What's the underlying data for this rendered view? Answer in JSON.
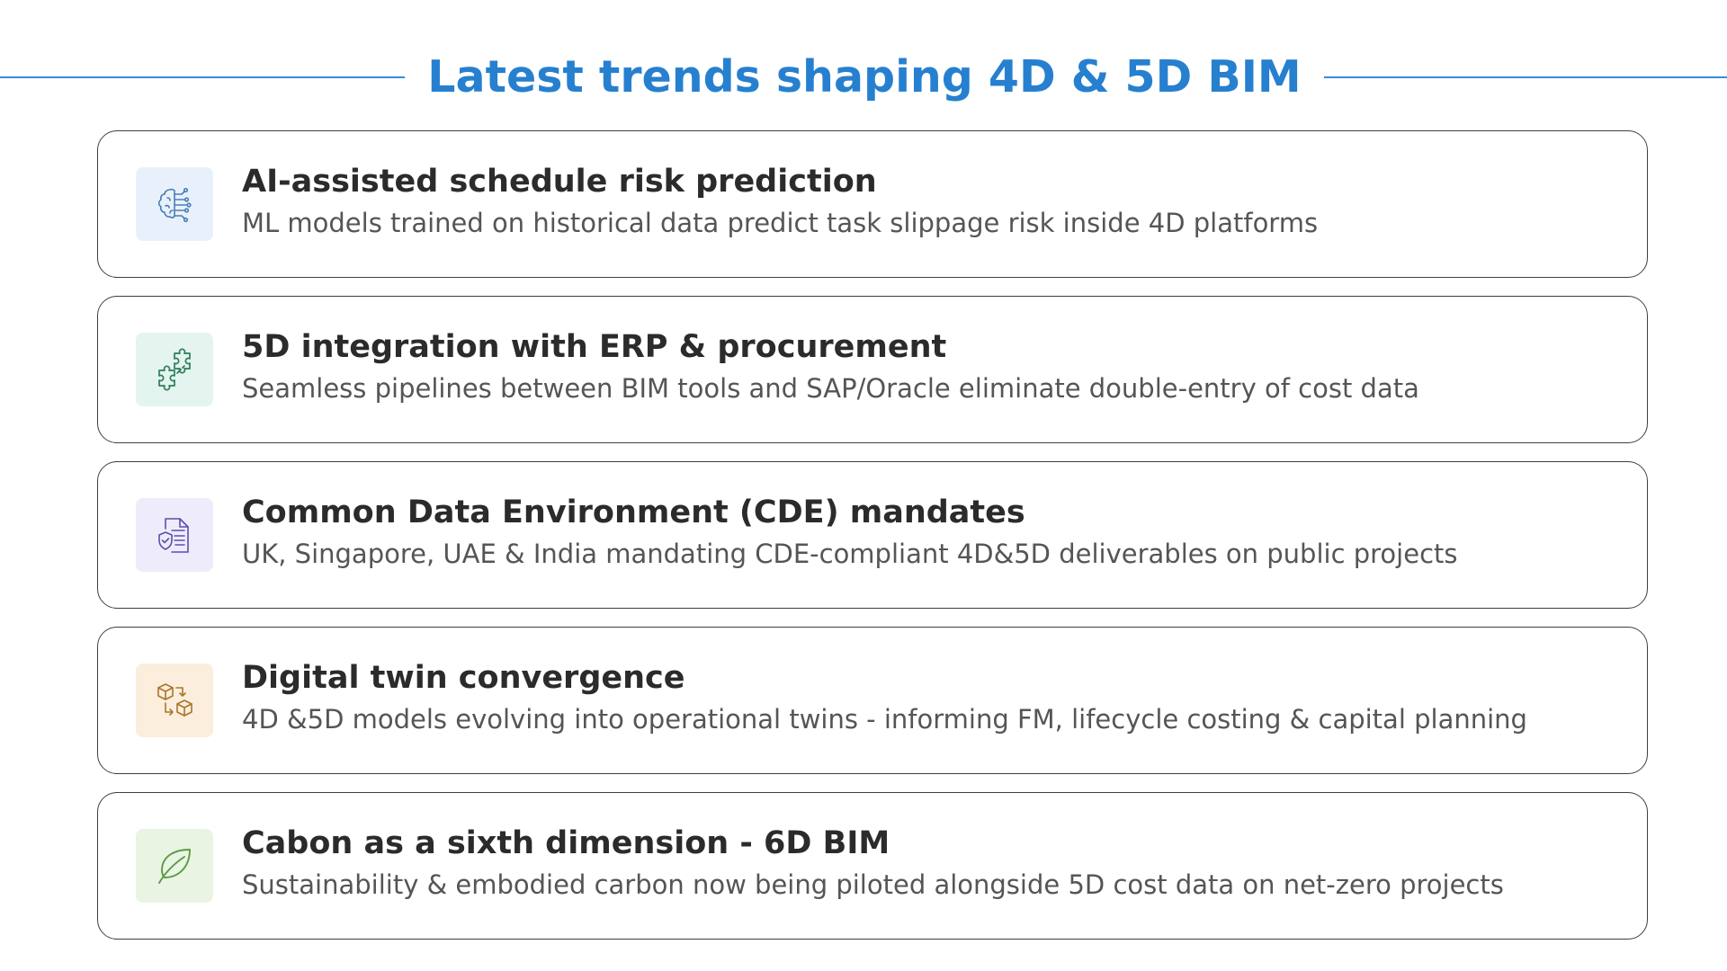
{
  "header": {
    "title": "Latest trends shaping 4D & 5D BIM"
  },
  "trends": [
    {
      "title": "AI-assisted schedule risk prediction",
      "description": "ML models trained on historical data predict task slippage risk inside 4D platforms",
      "icon": "brain-circuit-icon",
      "icon_bg": "#e8f1fb",
      "icon_color": "#4a7fb5"
    },
    {
      "title": "5D integration with ERP & procurement",
      "description": "Seamless pipelines between BIM tools and SAP/Oracle eliminate double-entry of cost data",
      "icon": "puzzle-pieces-icon",
      "icon_bg": "#e4f4ee",
      "icon_color": "#2e7d5b"
    },
    {
      "title": "Common Data Environment (CDE) mandates",
      "description": "UK, Singapore, UAE & India mandating CDE-compliant 4D&5D deliverables on public projects",
      "icon": "document-shield-icon",
      "icon_bg": "#eeecfb",
      "icon_color": "#5a4fb0"
    },
    {
      "title": "Digital twin convergence",
      "description": "4D &5D models evolving into operational twins - informing FM, lifecycle costing & capital planning",
      "icon": "cubes-transform-icon",
      "icon_bg": "#fbeedd",
      "icon_color": "#a8762a"
    },
    {
      "title": "Cabon as a sixth dimension - 6D BIM",
      "description": "Sustainability & embodied carbon now being piloted alongside 5D cost data on net-zero projects",
      "icon": "leaf-icon",
      "icon_bg": "#e9f4e3",
      "icon_color": "#5a9a45"
    }
  ]
}
